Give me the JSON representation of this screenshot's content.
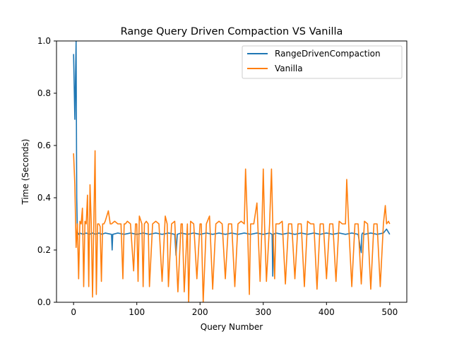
{
  "chart_data": {
    "type": "line",
    "title": "Range Query Driven Compaction VS Vanilla",
    "xlabel": "Query Number",
    "ylabel": "Time (Seconds)",
    "xlim": [
      -27,
      527
    ],
    "ylim": [
      0.0,
      1.0
    ],
    "xticks": [
      0,
      100,
      200,
      300,
      400,
      500
    ],
    "yticks": [
      0.0,
      0.2,
      0.4,
      0.6,
      0.8,
      1.0
    ],
    "ytick_labels": [
      "0.0",
      "0.2",
      "0.4",
      "0.6",
      "0.8",
      "1.0"
    ],
    "grid": false,
    "legend_position": "top-right",
    "series": [
      {
        "name": "RangeDrivenCompaction",
        "color": "#1f77b4",
        "x": [
          0,
          2,
          4,
          5,
          6,
          8,
          10,
          15,
          20,
          25,
          30,
          35,
          40,
          45,
          50,
          60,
          61,
          62,
          70,
          80,
          90,
          100,
          110,
          120,
          130,
          140,
          150,
          160,
          162,
          164,
          170,
          180,
          190,
          200,
          210,
          220,
          230,
          240,
          250,
          260,
          270,
          280,
          290,
          300,
          310,
          314,
          315,
          316,
          320,
          330,
          340,
          350,
          360,
          370,
          380,
          390,
          400,
          410,
          420,
          430,
          440,
          450,
          455,
          456,
          457,
          460,
          470,
          480,
          490,
          495,
          500
        ],
        "y": [
          0.95,
          0.7,
          1.0,
          0.4,
          0.27,
          0.26,
          0.265,
          0.26,
          0.265,
          0.26,
          0.265,
          0.26,
          0.265,
          0.26,
          0.265,
          0.26,
          0.2,
          0.26,
          0.265,
          0.26,
          0.265,
          0.26,
          0.265,
          0.26,
          0.265,
          0.26,
          0.265,
          0.26,
          0.18,
          0.26,
          0.265,
          0.26,
          0.265,
          0.26,
          0.265,
          0.26,
          0.265,
          0.26,
          0.265,
          0.26,
          0.265,
          0.26,
          0.265,
          0.26,
          0.265,
          0.26,
          0.1,
          0.26,
          0.265,
          0.26,
          0.265,
          0.26,
          0.265,
          0.26,
          0.265,
          0.26,
          0.265,
          0.26,
          0.265,
          0.26,
          0.265,
          0.26,
          0.19,
          0.26,
          0.265,
          0.26,
          0.265,
          0.26,
          0.265,
          0.28,
          0.26
        ]
      },
      {
        "name": "Vanilla",
        "color": "#ff7f0e",
        "x": [
          0,
          2,
          4,
          6,
          8,
          10,
          12,
          14,
          16,
          18,
          20,
          22,
          24,
          26,
          28,
          30,
          32,
          34,
          36,
          38,
          40,
          42,
          44,
          46,
          48,
          50,
          55,
          58,
          60,
          65,
          70,
          75,
          78,
          80,
          82,
          85,
          90,
          95,
          98,
          100,
          102,
          104,
          108,
          110,
          112,
          115,
          118,
          120,
          125,
          130,
          135,
          140,
          145,
          148,
          150,
          155,
          160,
          165,
          170,
          172,
          175,
          180,
          182,
          185,
          190,
          195,
          200,
          202,
          205,
          210,
          215,
          220,
          225,
          230,
          235,
          240,
          245,
          250,
          255,
          260,
          265,
          270,
          272,
          275,
          278,
          280,
          285,
          290,
          295,
          298,
          300,
          302,
          305,
          310,
          313,
          315,
          318,
          320,
          325,
          330,
          335,
          340,
          345,
          350,
          355,
          360,
          365,
          370,
          375,
          380,
          385,
          390,
          395,
          400,
          405,
          410,
          415,
          420,
          425,
          430,
          432,
          435,
          440,
          445,
          450,
          455,
          460,
          465,
          470,
          475,
          480,
          485,
          490,
          493,
          495,
          498,
          500
        ],
        "y": [
          0.57,
          0.45,
          0.21,
          0.3,
          0.09,
          0.31,
          0.3,
          0.36,
          0.06,
          0.31,
          0.3,
          0.41,
          0.06,
          0.45,
          0.3,
          0.02,
          0.3,
          0.58,
          0.03,
          0.3,
          0.3,
          0.29,
          0.08,
          0.3,
          0.3,
          0.31,
          0.35,
          0.3,
          0.3,
          0.31,
          0.3,
          0.3,
          0.09,
          0.3,
          0.3,
          0.31,
          0.3,
          0.12,
          0.3,
          0.3,
          0.08,
          0.33,
          0.3,
          0.06,
          0.3,
          0.31,
          0.3,
          0.06,
          0.3,
          0.31,
          0.3,
          0.08,
          0.33,
          0.3,
          0.06,
          0.3,
          0.31,
          0.04,
          0.3,
          0.3,
          0.04,
          0.3,
          0.0,
          0.31,
          0.3,
          0.09,
          0.3,
          0.3,
          0.0,
          0.3,
          0.33,
          0.05,
          0.3,
          0.31,
          0.3,
          0.09,
          0.3,
          0.3,
          0.06,
          0.3,
          0.31,
          0.3,
          0.51,
          0.3,
          0.03,
          0.3,
          0.3,
          0.38,
          0.08,
          0.3,
          0.51,
          0.3,
          0.08,
          0.3,
          0.51,
          0.3,
          0.09,
          0.3,
          0.3,
          0.31,
          0.07,
          0.3,
          0.3,
          0.09,
          0.3,
          0.3,
          0.06,
          0.31,
          0.3,
          0.3,
          0.05,
          0.3,
          0.3,
          0.09,
          0.3,
          0.3,
          0.08,
          0.31,
          0.3,
          0.3,
          0.47,
          0.3,
          0.06,
          0.3,
          0.3,
          0.07,
          0.31,
          0.3,
          0.05,
          0.3,
          0.3,
          0.06,
          0.3,
          0.37,
          0.3,
          0.31,
          0.3
        ]
      }
    ]
  }
}
